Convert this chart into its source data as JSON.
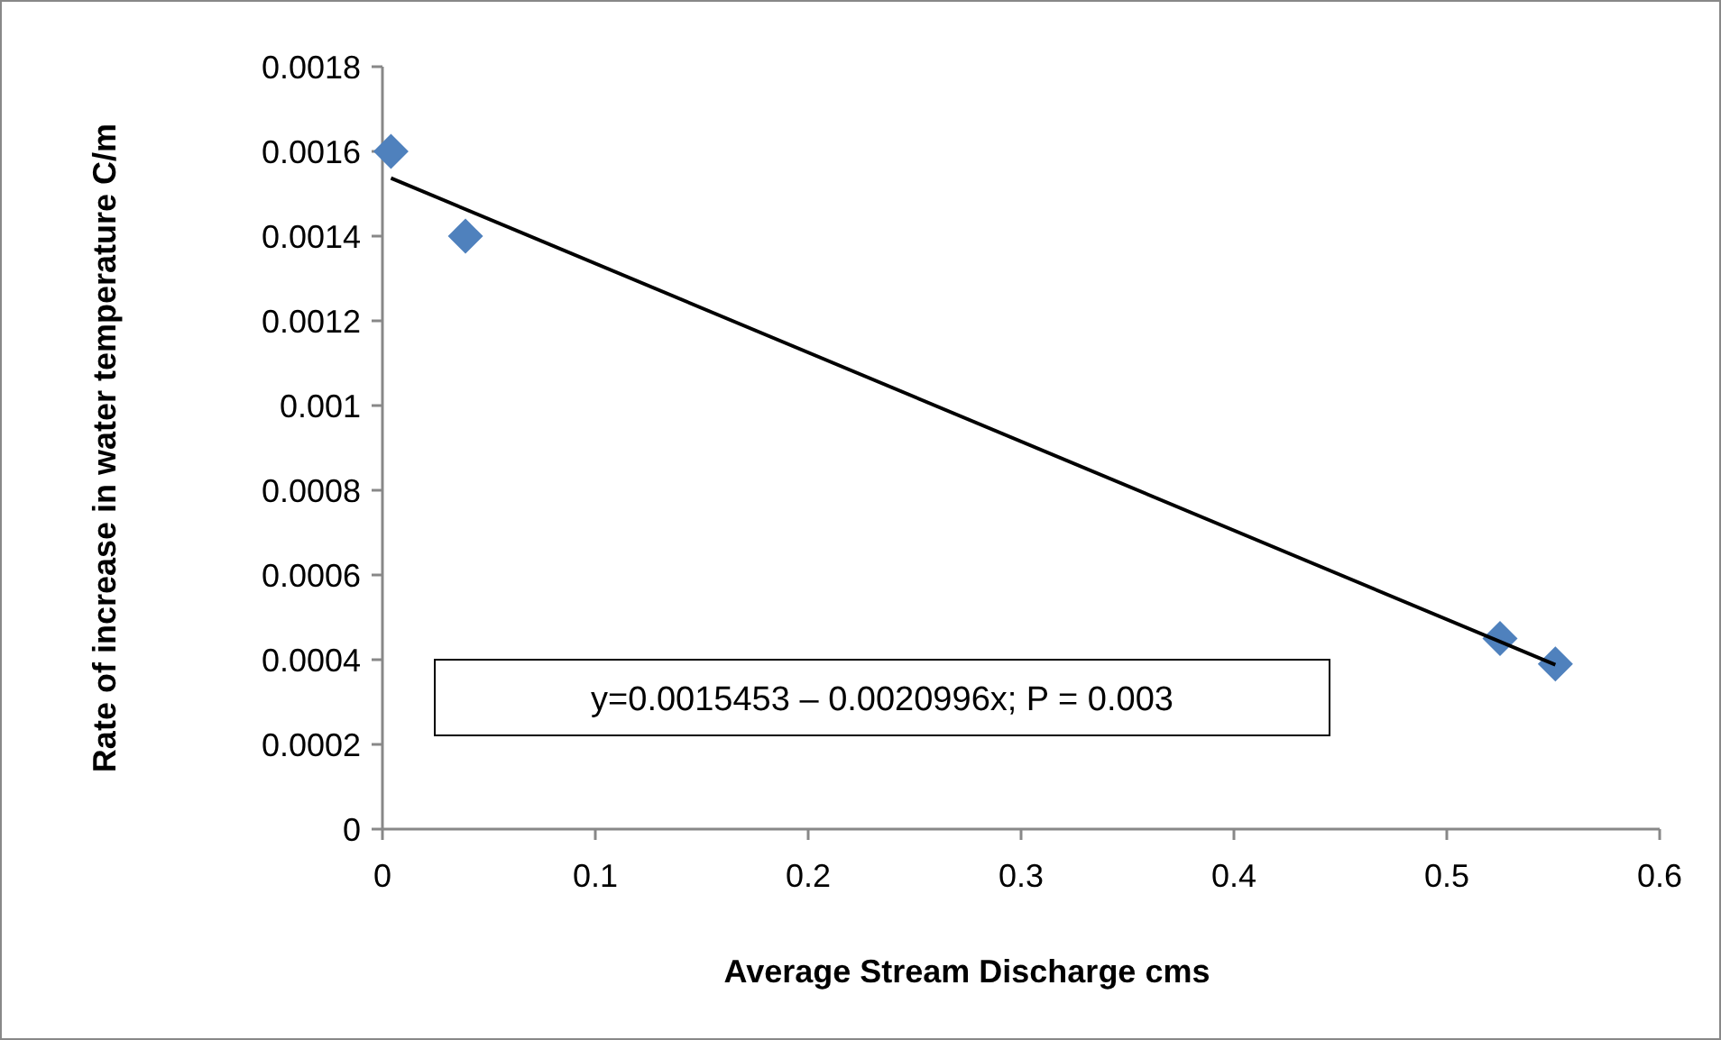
{
  "chart_data": {
    "type": "scatter",
    "xlabel": "Average Stream Discharge cms",
    "ylabel": "Rate of increase in water temperature C/m",
    "xlim": [
      0,
      0.6
    ],
    "xticks": [
      0,
      0.1,
      0.2,
      0.3,
      0.4,
      0.5,
      0.6
    ],
    "ylim": [
      0,
      0.0018
    ],
    "yticks": [
      0,
      0.0002,
      0.0004,
      0.0006,
      0.0008,
      0.001,
      0.0012,
      0.0014,
      0.0016,
      0.0018
    ],
    "grid": false,
    "marker": "diamond",
    "series": [
      {
        "color": "#4f81bd",
        "x": [
          0.004,
          0.039,
          0.525,
          0.551
        ],
        "values": [
          0.0016,
          0.0014,
          0.00045,
          0.00039
        ]
      },
      {
        "type": "line",
        "color": "#000000",
        "marker": "none",
        "x": [
          0.004,
          0.551
        ],
        "values": [
          0.001537,
          0.000388
        ]
      }
    ],
    "annotations": [
      "y=0.0015453 – 0.0020996x; P = 0.003"
    ]
  }
}
